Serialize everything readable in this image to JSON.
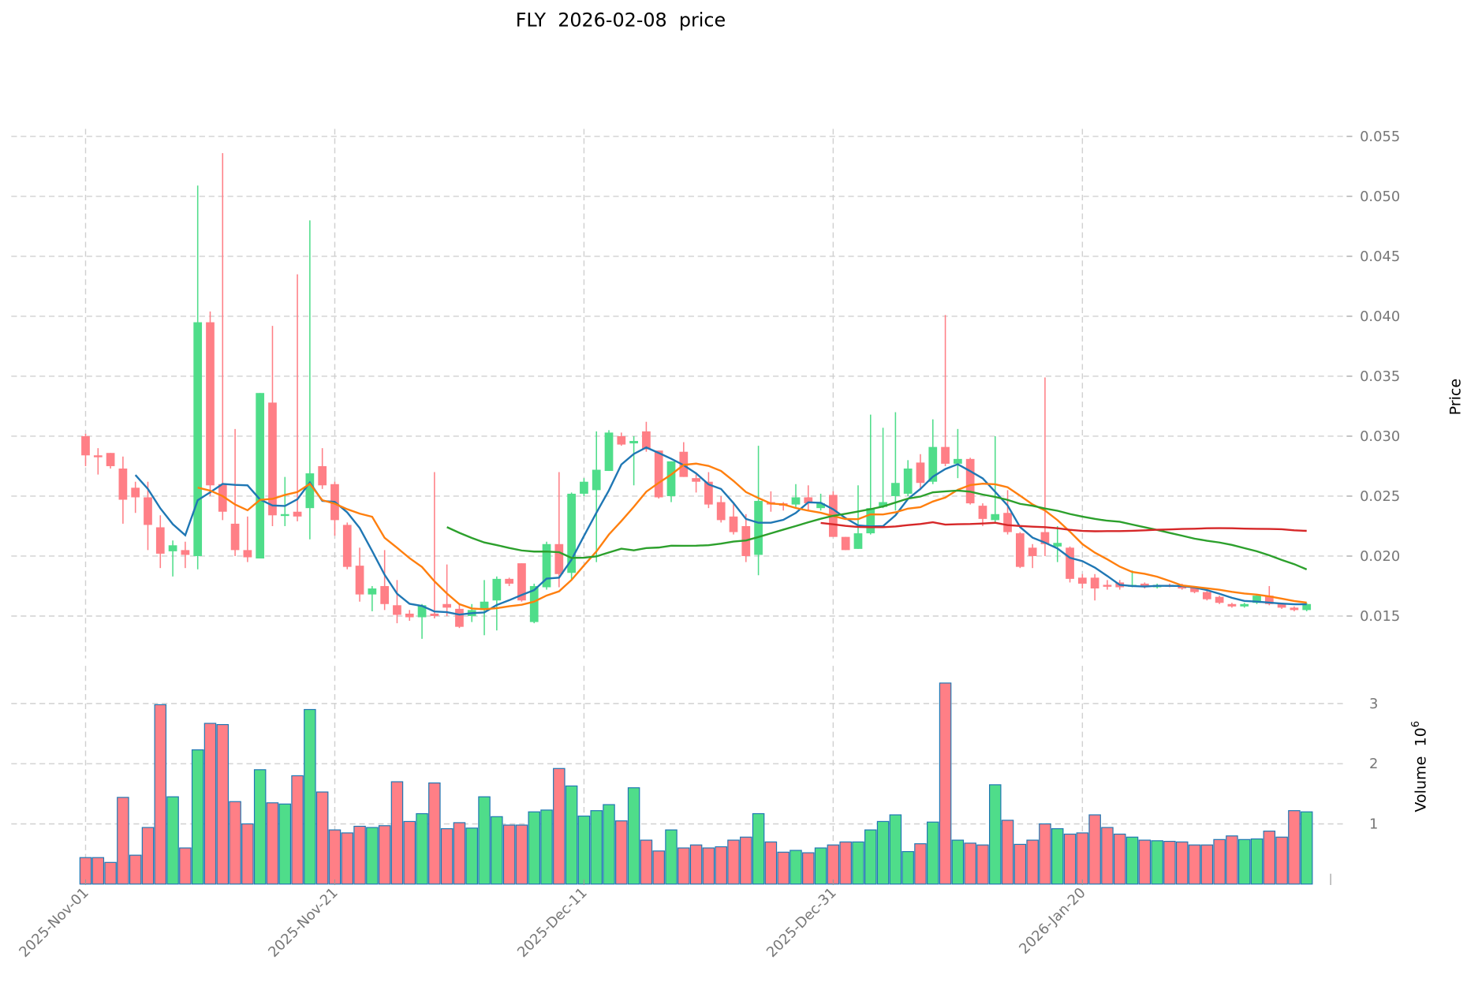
{
  "chart_data": {
    "type": "candlestick",
    "title": "FLY  2026-02-08  price",
    "ylabel": "Price",
    "volume_label": "Volume  10",
    "volume_exponent": "6",
    "ylim": [
      0.0125,
      0.0555
    ],
    "volume_ylim": [
      0,
      3.4
    ],
    "start_date": "2025-11-01",
    "x_tick_labels": [
      "2025-Nov-01",
      "2025-Nov-21",
      "2025-Dec-11",
      "2025-Dec-31",
      "2026-Jan-20"
    ],
    "x_tick_index": [
      0,
      20,
      40,
      60,
      80
    ],
    "y_ticks": [
      "0.015",
      "0.020",
      "0.025",
      "0.030",
      "0.035",
      "0.040",
      "0.045",
      "0.050",
      "0.055"
    ],
    "volume_ticks": [
      "1",
      "2",
      "3"
    ],
    "moving_averages": [
      {
        "window": 5,
        "color": "#1f77b4"
      },
      {
        "window": 10,
        "color": "#ff7f0e"
      },
      {
        "window": 30,
        "color": "#2ca02c"
      },
      {
        "window": 60,
        "color": "#d62728"
      }
    ],
    "colors": {
      "up": "#4fdd8a",
      "down": "#ff7f86",
      "volume_edge": "#1f77b4"
    },
    "ohlcv_columns": [
      "open",
      "high",
      "low",
      "close",
      "volume_millions"
    ],
    "ohlcv": [
      [
        0.03,
        0.0302,
        0.0275,
        0.0284,
        0.44
      ],
      [
        0.0284,
        0.029,
        0.0268,
        0.0283,
        0.44
      ],
      [
        0.0286,
        0.0286,
        0.0273,
        0.0275,
        0.36
      ],
      [
        0.0273,
        0.0283,
        0.0227,
        0.0247,
        1.44
      ],
      [
        0.0257,
        0.0262,
        0.0236,
        0.0249,
        0.48
      ],
      [
        0.0249,
        0.0262,
        0.0205,
        0.0226,
        0.94
      ],
      [
        0.0224,
        0.0234,
        0.019,
        0.0202,
        2.98
      ],
      [
        0.0204,
        0.0213,
        0.0183,
        0.0209,
        1.45
      ],
      [
        0.0205,
        0.0212,
        0.019,
        0.0201,
        0.6
      ],
      [
        0.02,
        0.0509,
        0.0189,
        0.0395,
        2.23
      ],
      [
        0.0395,
        0.0404,
        0.025,
        0.0259,
        2.67
      ],
      [
        0.026,
        0.0536,
        0.023,
        0.0237,
        2.65
      ],
      [
        0.0227,
        0.0306,
        0.02,
        0.0205,
        1.37
      ],
      [
        0.0205,
        0.0233,
        0.0195,
        0.0199,
        1.0
      ],
      [
        0.0198,
        0.0336,
        0.0198,
        0.0336,
        1.9
      ],
      [
        0.0328,
        0.0392,
        0.0225,
        0.0234,
        1.35
      ],
      [
        0.0234,
        0.0266,
        0.0225,
        0.0235,
        1.33
      ],
      [
        0.0237,
        0.0435,
        0.0229,
        0.0233,
        1.8
      ],
      [
        0.024,
        0.048,
        0.0214,
        0.0269,
        2.9
      ],
      [
        0.0275,
        0.029,
        0.0256,
        0.0259,
        1.53
      ],
      [
        0.026,
        0.0262,
        0.0217,
        0.023,
        0.9
      ],
      [
        0.0226,
        0.0228,
        0.0189,
        0.0191,
        0.85
      ],
      [
        0.0192,
        0.0207,
        0.0162,
        0.0168,
        0.96
      ],
      [
        0.0168,
        0.0175,
        0.0154,
        0.0173,
        0.94
      ],
      [
        0.0175,
        0.0205,
        0.0155,
        0.016,
        0.97
      ],
      [
        0.0159,
        0.018,
        0.0144,
        0.0151,
        1.7
      ],
      [
        0.0152,
        0.0155,
        0.0146,
        0.0149,
        1.04
      ],
      [
        0.0149,
        0.016,
        0.0131,
        0.0159,
        1.17
      ],
      [
        0.0152,
        0.027,
        0.0148,
        0.015,
        1.68
      ],
      [
        0.016,
        0.0193,
        0.015,
        0.0157,
        0.92
      ],
      [
        0.0156,
        0.016,
        0.014,
        0.0141,
        1.02
      ],
      [
        0.015,
        0.016,
        0.0145,
        0.0155,
        0.93
      ],
      [
        0.0155,
        0.018,
        0.0134,
        0.0162,
        1.45
      ],
      [
        0.0163,
        0.0183,
        0.0138,
        0.0181,
        1.12
      ],
      [
        0.0181,
        0.0182,
        0.0175,
        0.0177,
        0.98
      ],
      [
        0.0194,
        0.0194,
        0.0162,
        0.0163,
        0.98
      ],
      [
        0.0145,
        0.0177,
        0.0144,
        0.0175,
        1.2
      ],
      [
        0.0174,
        0.0212,
        0.0172,
        0.021,
        1.23
      ],
      [
        0.021,
        0.027,
        0.0174,
        0.0185,
        1.92
      ],
      [
        0.0186,
        0.0253,
        0.018,
        0.0252,
        1.63
      ],
      [
        0.0252,
        0.0265,
        0.025,
        0.0262,
        1.13
      ],
      [
        0.0255,
        0.0304,
        0.0195,
        0.0272,
        1.22
      ],
      [
        0.0271,
        0.0305,
        0.0271,
        0.0303,
        1.32
      ],
      [
        0.03,
        0.0303,
        0.0292,
        0.0293,
        1.05
      ],
      [
        0.0294,
        0.03,
        0.0259,
        0.0296,
        1.6
      ],
      [
        0.0304,
        0.0312,
        0.0287,
        0.0289,
        0.73
      ],
      [
        0.0288,
        0.0288,
        0.0248,
        0.0249,
        0.55
      ],
      [
        0.025,
        0.0279,
        0.0245,
        0.0279,
        0.9
      ],
      [
        0.0287,
        0.0295,
        0.0266,
        0.0266,
        0.6
      ],
      [
        0.0265,
        0.0268,
        0.0253,
        0.0262,
        0.65
      ],
      [
        0.0262,
        0.027,
        0.024,
        0.0243,
        0.6
      ],
      [
        0.0245,
        0.025,
        0.0228,
        0.023,
        0.62
      ],
      [
        0.0233,
        0.0245,
        0.0218,
        0.022,
        0.73
      ],
      [
        0.0225,
        0.0235,
        0.0195,
        0.02,
        0.78
      ],
      [
        0.0201,
        0.0292,
        0.0184,
        0.0246,
        1.17
      ],
      [
        0.0245,
        0.0254,
        0.0237,
        0.0243,
        0.7
      ],
      [
        0.0244,
        0.0245,
        0.0238,
        0.0242,
        0.53
      ],
      [
        0.0243,
        0.026,
        0.024,
        0.0249,
        0.56
      ],
      [
        0.0249,
        0.0259,
        0.0238,
        0.0244,
        0.52
      ],
      [
        0.024,
        0.0252,
        0.0238,
        0.0244,
        0.6
      ],
      [
        0.0251,
        0.0254,
        0.0216,
        0.0216,
        0.65
      ],
      [
        0.0216,
        0.0216,
        0.0205,
        0.0205,
        0.7
      ],
      [
        0.0206,
        0.0259,
        0.0206,
        0.0219,
        0.7
      ],
      [
        0.0219,
        0.0318,
        0.0218,
        0.024,
        0.9
      ],
      [
        0.0241,
        0.0307,
        0.024,
        0.0245,
        1.04
      ],
      [
        0.025,
        0.032,
        0.0238,
        0.0261,
        1.15
      ],
      [
        0.0252,
        0.028,
        0.025,
        0.0273,
        0.54
      ],
      [
        0.0278,
        0.0285,
        0.0255,
        0.0261,
        0.67
      ],
      [
        0.0262,
        0.0314,
        0.026,
        0.0291,
        1.03
      ],
      [
        0.0291,
        0.0401,
        0.0275,
        0.0277,
        3.34
      ],
      [
        0.0277,
        0.0306,
        0.0265,
        0.0281,
        0.73
      ],
      [
        0.0281,
        0.0282,
        0.0243,
        0.0244,
        0.68
      ],
      [
        0.0242,
        0.0244,
        0.0225,
        0.0231,
        0.65
      ],
      [
        0.023,
        0.03,
        0.0228,
        0.0235,
        1.65
      ],
      [
        0.0236,
        0.0255,
        0.0218,
        0.022,
        1.06
      ],
      [
        0.0219,
        0.022,
        0.019,
        0.0191,
        0.66
      ],
      [
        0.0207,
        0.021,
        0.019,
        0.02,
        0.73
      ],
      [
        0.022,
        0.0349,
        0.02,
        0.021,
        1.0
      ],
      [
        0.0208,
        0.0225,
        0.0195,
        0.0211,
        0.92
      ],
      [
        0.0207,
        0.0208,
        0.0178,
        0.0181,
        0.83
      ],
      [
        0.0182,
        0.0185,
        0.0173,
        0.0177,
        0.85
      ],
      [
        0.0182,
        0.0185,
        0.0163,
        0.0173,
        1.15
      ],
      [
        0.0176,
        0.018,
        0.0172,
        0.0175,
        0.94
      ],
      [
        0.0178,
        0.018,
        0.0172,
        0.0174,
        0.83
      ],
      [
        0.0175,
        0.0188,
        0.0174,
        0.0176,
        0.78
      ],
      [
        0.0177,
        0.0178,
        0.0173,
        0.0175,
        0.73
      ],
      [
        0.0174,
        0.0177,
        0.0173,
        0.0176,
        0.72
      ],
      [
        0.0176,
        0.0177,
        0.0174,
        0.0175,
        0.71
      ],
      [
        0.0176,
        0.0177,
        0.0172,
        0.0173,
        0.7
      ],
      [
        0.0174,
        0.0175,
        0.0169,
        0.017,
        0.65
      ],
      [
        0.017,
        0.0171,
        0.0163,
        0.0164,
        0.65
      ],
      [
        0.0166,
        0.0167,
        0.016,
        0.0161,
        0.74
      ],
      [
        0.016,
        0.0161,
        0.0157,
        0.0158,
        0.8
      ],
      [
        0.0158,
        0.0161,
        0.0157,
        0.016,
        0.74
      ],
      [
        0.0161,
        0.0168,
        0.016,
        0.0167,
        0.75
      ],
      [
        0.0167,
        0.0175,
        0.0159,
        0.016,
        0.88
      ],
      [
        0.016,
        0.0161,
        0.0156,
        0.0157,
        0.78
      ],
      [
        0.0157,
        0.0158,
        0.0154,
        0.0155,
        1.22
      ],
      [
        0.0155,
        0.0161,
        0.0154,
        0.016,
        1.2
      ]
    ]
  }
}
